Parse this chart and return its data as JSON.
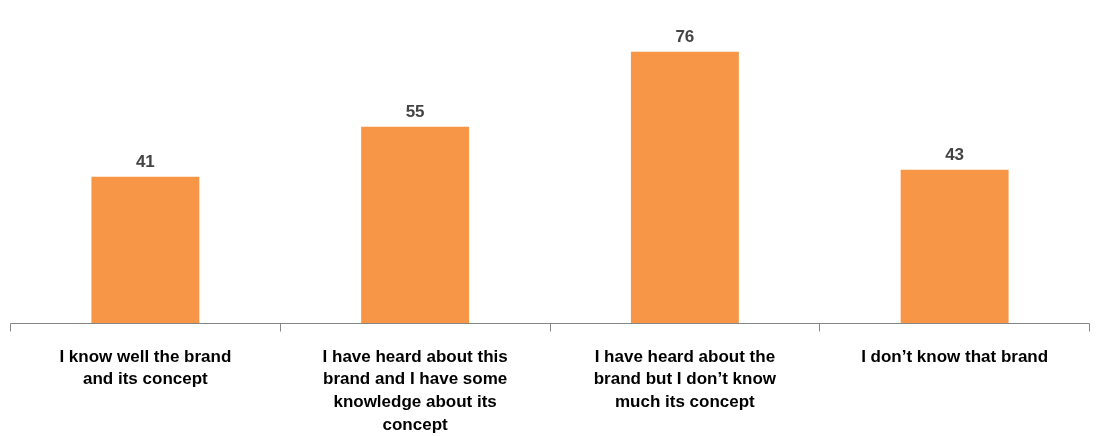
{
  "chart_data": {
    "type": "bar",
    "categories": [
      "I know well the brand and its concept",
      "I have heard about this brand and I have some knowledge about its concept",
      "I have heard about the brand but I don’t know much its concept",
      "I don’t know that brand"
    ],
    "values": [
      41,
      55,
      76,
      43
    ],
    "color": "#f79646",
    "data_labels": true
  }
}
